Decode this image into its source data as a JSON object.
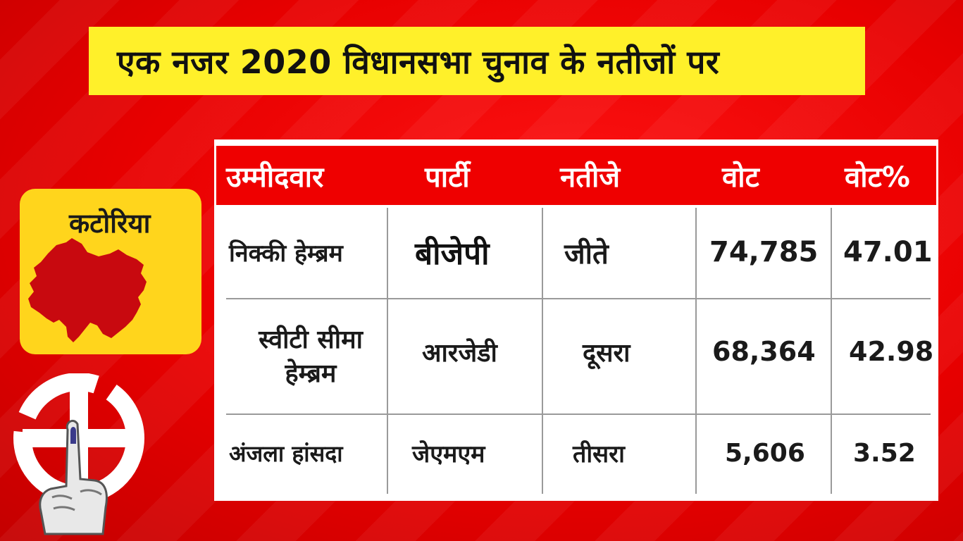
{
  "title": "एक नजर 2020 विधानसभा चुनाव के नतीजों पर",
  "district": {
    "name": "कटोरिया"
  },
  "colors": {
    "background": "#e80000",
    "title_bar": "#fff02a",
    "card": "#ffd51c",
    "map_fill": "#c8090f",
    "header": "#ef0000"
  },
  "table": {
    "headers": [
      "उम्मीदवार",
      "पार्टी",
      "नतीजे",
      "वोट",
      "वोट%"
    ],
    "rows": [
      {
        "candidate": "निक्की हेम्ब्रम",
        "candidate_line2": "",
        "party": "बीजेपी",
        "result": "जीते",
        "votes": "74,785",
        "vote_pct": "47.01"
      },
      {
        "candidate": "स्वीटी सीमा",
        "candidate_line2": "हेम्ब्रम",
        "party": "आरजेडी",
        "result": "दूसरा",
        "votes": "68,364",
        "vote_pct": "42.98"
      },
      {
        "candidate": "अंजला हांसदा",
        "candidate_line2": "",
        "party": "जेएमएम",
        "result": "तीसरा",
        "votes": "5,606",
        "vote_pct": "3.52"
      }
    ]
  },
  "icons": {
    "map": "district-map-icon",
    "emblem": "election-swastika-icon",
    "finger": "inked-finger-icon"
  }
}
